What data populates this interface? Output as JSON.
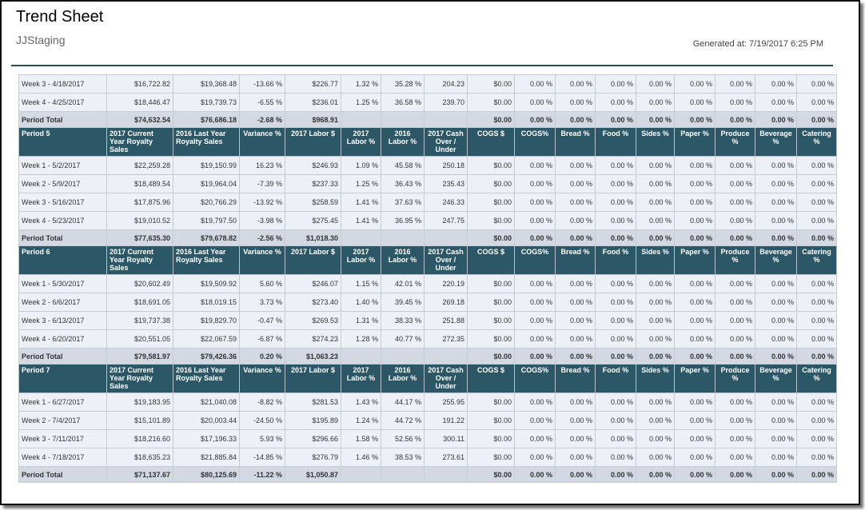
{
  "report": {
    "title": "Trend Sheet",
    "subtitle": "JJStaging",
    "generated": "Generated at: 7/19/2017 6:25 PM"
  },
  "colors": {
    "header_bg": "#2c5766",
    "negative": "#e0141e",
    "positive": "#1d9a1d"
  },
  "headers": [
    "",
    "2017 Current Year Royalty Sales",
    "2016 Last Year Royalty Sales",
    "Variance %",
    "2017 Labor $",
    "2017 Labor %",
    "2016 Labor %",
    "2017 Cash Over / Under",
    "COGS $",
    "COGS%",
    "Bread %",
    "Food %",
    "Sides %",
    "Paper %",
    "Produce %",
    "Beverage %",
    "Catering %"
  ],
  "top_rows": [
    [
      "Week 3 - 4/18/2017",
      "$16,722.82",
      "$19,368.48",
      "-13.66 %",
      "$226.77",
      "1.32 %",
      "35.28 %",
      "204.23",
      "$0.00",
      "0.00 %",
      "0.00 %",
      "0.00 %",
      "0.00 %",
      "0.00 %",
      "0.00 %",
      "0.00 %",
      "0.00 %"
    ],
    [
      "Week 4 - 4/25/2017",
      "$18,446.47",
      "$19,739.73",
      "-6.55 %",
      "$236.01",
      "1.25 %",
      "36.58 %",
      "239.70",
      "$0.00",
      "0.00 %",
      "0.00 %",
      "0.00 %",
      "0.00 %",
      "0.00 %",
      "0.00 %",
      "0.00 %",
      "0.00 %"
    ]
  ],
  "top_total": [
    "Period Total",
    "$74,632.54",
    "$76,686.18",
    "-2.68 %",
    "$968.91",
    "",
    "",
    "",
    "$0.00",
    "0.00 %",
    "0.00 %",
    "0.00 %",
    "0.00 %",
    "0.00 %",
    "0.00 %",
    "0.00 %",
    "0.00 %"
  ],
  "periods": [
    {
      "name": "Period 5",
      "rows": [
        [
          "Week 1 - 5/2/2017",
          "$22,259.28",
          "$19,150.99",
          "16.23 %",
          "$246.93",
          "1.09 %",
          "45.58 %",
          "250.18",
          "$0.00",
          "0.00 %",
          "0.00 %",
          "0.00 %",
          "0.00 %",
          "0.00 %",
          "0.00 %",
          "0.00 %",
          "0.00 %"
        ],
        [
          "Week 2 - 5/9/2017",
          "$18,489.54",
          "$19,964.04",
          "-7.39 %",
          "$237.33",
          "1.25 %",
          "36.43 %",
          "235.43",
          "$0.00",
          "0.00 %",
          "0.00 %",
          "0.00 %",
          "0.00 %",
          "0.00 %",
          "0.00 %",
          "0.00 %",
          "0.00 %"
        ],
        [
          "Week 3 - 5/16/2017",
          "$17,875.96",
          "$20,766.29",
          "-13.92 %",
          "$258.59",
          "1.41 %",
          "37.63 %",
          "246.33",
          "$0.00",
          "0.00 %",
          "0.00 %",
          "0.00 %",
          "0.00 %",
          "0.00 %",
          "0.00 %",
          "0.00 %",
          "0.00 %"
        ],
        [
          "Week 4 - 5/23/2017",
          "$19,010.52",
          "$19,797.50",
          "-3.98 %",
          "$275.45",
          "1.41 %",
          "36.95 %",
          "247.75",
          "$0.00",
          "0.00 %",
          "0.00 %",
          "0.00 %",
          "0.00 %",
          "0.00 %",
          "0.00 %",
          "0.00 %",
          "0.00 %"
        ]
      ],
      "total": [
        "Period Total",
        "$77,635.30",
        "$79,678.82",
        "-2.56 %",
        "$1,018.30",
        "",
        "",
        "",
        "$0.00",
        "0.00 %",
        "0.00 %",
        "0.00 %",
        "0.00 %",
        "0.00 %",
        "0.00 %",
        "0.00 %",
        "0.00 %"
      ]
    },
    {
      "name": "Period 6",
      "rows": [
        [
          "Week 1 - 5/30/2017",
          "$20,602.49",
          "$19,509.92",
          "5.60 %",
          "$246.07",
          "1.15 %",
          "42.01 %",
          "220.19",
          "$0.00",
          "0.00 %",
          "0.00 %",
          "0.00 %",
          "0.00 %",
          "0.00 %",
          "0.00 %",
          "0.00 %",
          "0.00 %"
        ],
        [
          "Week 2 - 6/6/2017",
          "$18,691.05",
          "$18,019.15",
          "3.73 %",
          "$273.40",
          "1.40 %",
          "39.45 %",
          "269.18",
          "$0.00",
          "0.00 %",
          "0.00 %",
          "0.00 %",
          "0.00 %",
          "0.00 %",
          "0.00 %",
          "0.00 %",
          "0.00 %"
        ],
        [
          "Week 3 - 6/13/2017",
          "$19,737.38",
          "$19,829.70",
          "-0.47 %",
          "$269.53",
          "1.31 %",
          "38.33 %",
          "251.88",
          "$0.00",
          "0.00 %",
          "0.00 %",
          "0.00 %",
          "0.00 %",
          "0.00 %",
          "0.00 %",
          "0.00 %",
          "0.00 %"
        ],
        [
          "Week 4 - 6/20/2017",
          "$20,551.05",
          "$22,067.59",
          "-6.87 %",
          "$274.23",
          "1.28 %",
          "40.77 %",
          "272.35",
          "$0.00",
          "0.00 %",
          "0.00 %",
          "0.00 %",
          "0.00 %",
          "0.00 %",
          "0.00 %",
          "0.00 %",
          "0.00 %"
        ]
      ],
      "total": [
        "Period Total",
        "$79,581.97",
        "$79,426.36",
        "0.20 %",
        "$1,063.23",
        "",
        "",
        "",
        "$0.00",
        "0.00 %",
        "0.00 %",
        "0.00 %",
        "0.00 %",
        "0.00 %",
        "0.00 %",
        "0.00 %",
        "0.00 %"
      ]
    },
    {
      "name": "Period 7",
      "rows": [
        [
          "Week 1 - 6/27/2017",
          "$19,183.95",
          "$21,040.08",
          "-8.82 %",
          "$281.53",
          "1.43 %",
          "44.17 %",
          "255.95",
          "$0.00",
          "0.00 %",
          "0.00 %",
          "0.00 %",
          "0.00 %",
          "0.00 %",
          "0.00 %",
          "0.00 %",
          "0.00 %"
        ],
        [
          "Week 2 - 7/4/2017",
          "$15,101.89",
          "$20,003.44",
          "-24.50 %",
          "$195.89",
          "1.24 %",
          "44.72 %",
          "191.22",
          "$0.00",
          "0.00 %",
          "0.00 %",
          "0.00 %",
          "0.00 %",
          "0.00 %",
          "0.00 %",
          "0.00 %",
          "0.00 %"
        ],
        [
          "Week 3 - 7/11/2017",
          "$18,216.60",
          "$17,196.33",
          "5.93 %",
          "$296.66",
          "1.58 %",
          "52.56 %",
          "300.11",
          "$0.00",
          "0.00 %",
          "0.00 %",
          "0.00 %",
          "0.00 %",
          "0.00 %",
          "0.00 %",
          "0.00 %",
          "0.00 %"
        ],
        [
          "Week 4 - 7/18/2017",
          "$18,635.23",
          "$21,885.84",
          "-14.85 %",
          "$276.79",
          "1.46 %",
          "38.53 %",
          "273.61",
          "$0.00",
          "0.00 %",
          "0.00 %",
          "0.00 %",
          "0.00 %",
          "0.00 %",
          "0.00 %",
          "0.00 %",
          "0.00 %"
        ]
      ],
      "total": [
        "Period Total",
        "$71,137.67",
        "$80,125.69",
        "-11.22 %",
        "$1,050.87",
        "",
        "",
        "",
        "$0.00",
        "0.00 %",
        "0.00 %",
        "0.00 %",
        "0.00 %",
        "0.00 %",
        "0.00 %",
        "0.00 %",
        "0.00 %"
      ]
    }
  ]
}
